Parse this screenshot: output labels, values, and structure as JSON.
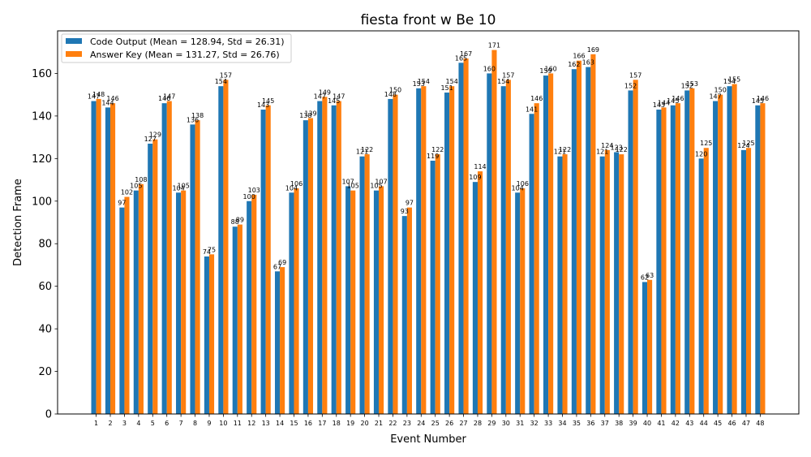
{
  "chart_data": {
    "type": "bar",
    "title": "fiesta front w Be 10",
    "xlabel": "Event Number",
    "ylabel": "Detection Frame",
    "ylim": [
      0,
      180
    ],
    "yticks": [
      0,
      20,
      40,
      60,
      80,
      100,
      120,
      140,
      160
    ],
    "grid": false,
    "legend_position": "top-left",
    "categories": [
      "1",
      "2",
      "3",
      "4",
      "5",
      "6",
      "7",
      "8",
      "9",
      "10",
      "11",
      "12",
      "13",
      "14",
      "15",
      "16",
      "17",
      "18",
      "19",
      "20",
      "21",
      "22",
      "23",
      "24",
      "25",
      "26",
      "27",
      "28",
      "29",
      "30",
      "31",
      "32",
      "33",
      "34",
      "35",
      "36",
      "37",
      "38",
      "39",
      "40",
      "41",
      "42",
      "43",
      "44",
      "45",
      "46",
      "47",
      "48"
    ],
    "series": [
      {
        "name": "Code Output (Mean = 128.94, Std = 26.31)",
        "color": "#1f77b4",
        "values": [
          147,
          144,
          97,
          105,
          127,
          146,
          104,
          136,
          74,
          154,
          88,
          100,
          143,
          67,
          104,
          138,
          147,
          145,
          107,
          121,
          105,
          148,
          93,
          153,
          119,
          151,
          165,
          109,
          160,
          154,
          104,
          141,
          159,
          121,
          162,
          163,
          121,
          123,
          152,
          62,
          143,
          145,
          152,
          120,
          147,
          154,
          124,
          145
        ]
      },
      {
        "name": "Answer Key (Mean = 131.27, Std = 26.76)",
        "color": "#ff7f0e",
        "values": [
          148,
          146,
          102,
          108,
          129,
          147,
          105,
          138,
          75,
          157,
          89,
          103,
          145,
          69,
          106,
          139,
          149,
          147,
          105,
          122,
          107,
          150,
          97,
          154,
          122,
          154,
          167,
          114,
          171,
          157,
          106,
          146,
          160,
          122,
          166,
          169,
          124,
          122,
          157,
          63,
          144,
          146,
          153,
          125,
          150,
          155,
          125,
          146
        ]
      }
    ]
  }
}
